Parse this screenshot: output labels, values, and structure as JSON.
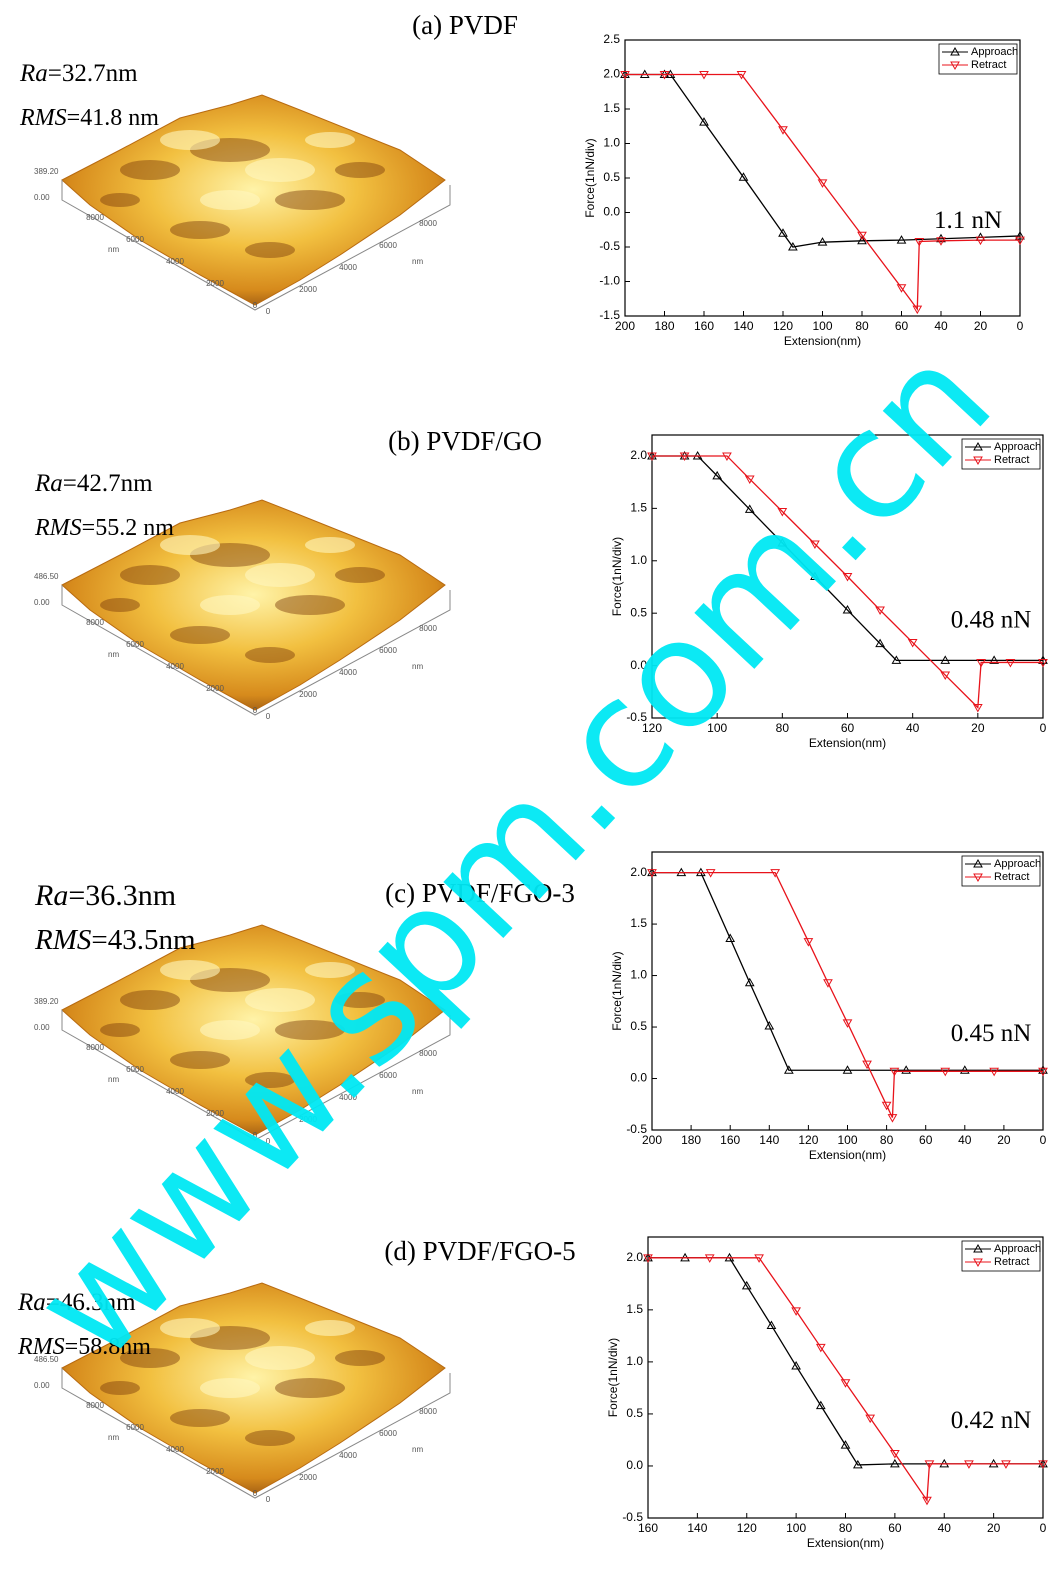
{
  "watermark": "www.spm.com.cn",
  "panels": [
    {
      "title": "(a) PVDF",
      "ra_symbol": "Ra",
      "ra_text": "=32.7nm",
      "rms_symbol": "RMS",
      "rms_text": "=41.8 nm",
      "afm": {
        "z_labels": [
          "389.20",
          "0.00"
        ],
        "left_ticks": [
          "8000",
          "6000",
          "4000",
          "2000",
          "0"
        ],
        "right_ticks": [
          "0",
          "2000",
          "4000",
          "6000",
          "8000"
        ],
        "unit": "nm"
      }
    },
    {
      "title": "(b) PVDF/GO",
      "ra_symbol": "Ra",
      "ra_text": "=42.7nm",
      "rms_symbol": "RMS",
      "rms_text": "=55.2 nm",
      "afm": {
        "z_labels": [
          "486.50",
          "0.00"
        ],
        "left_ticks": [
          "8000",
          "6000",
          "4000",
          "2000",
          "0"
        ],
        "right_ticks": [
          "0",
          "2000",
          "4000",
          "6000",
          "8000"
        ],
        "unit": "nm"
      }
    },
    {
      "title": "(c) PVDF/FGO-3",
      "ra_symbol": "Ra",
      "ra_text": "=36.3nm",
      "rms_symbol": "RMS",
      "rms_text": "=43.5nm",
      "afm": {
        "z_labels": [
          "389.20",
          "0.00"
        ],
        "left_ticks": [
          "8000",
          "6000",
          "4000",
          "2000",
          "0"
        ],
        "right_ticks": [
          "0",
          "2000",
          "4000",
          "6000",
          "8000"
        ],
        "unit": "nm"
      }
    },
    {
      "title": "(d) PVDF/FGO-5",
      "ra_symbol": "Ra",
      "ra_text": "=46.3nm",
      "rms_symbol": "RMS",
      "rms_text": "=58.8nm",
      "afm": {
        "z_labels": [
          "486.50",
          "0.00"
        ],
        "left_ticks": [
          "8000",
          "6000",
          "4000",
          "2000",
          "0"
        ],
        "right_ticks": [
          "0",
          "2000",
          "4000",
          "6000",
          "8000"
        ],
        "unit": "nm"
      }
    }
  ],
  "chart_data": [
    {
      "type": "line",
      "x_label": "Extension(nm)",
      "y_label": "Force(1nN/div)",
      "xlim": [
        200,
        0
      ],
      "ylim": [
        -1.5,
        2.5
      ],
      "xticks": [
        200,
        180,
        160,
        140,
        120,
        100,
        80,
        60,
        40,
        20,
        0
      ],
      "yticks": [
        {
          "value": -1.5,
          "label": "-1.5"
        },
        {
          "value": -1.0,
          "label": "-1.0"
        },
        {
          "value": -0.5,
          "label": "-0.5"
        },
        {
          "value": 0,
          "label": "0.0"
        },
        {
          "value": 0.5,
          "label": "0.5"
        },
        {
          "value": 1.0,
          "label": "1.0"
        },
        {
          "value": 1.5,
          "label": "1.5"
        },
        {
          "value": 2.0,
          "label": "2.0"
        },
        {
          "value": 2.5,
          "label": "2.5"
        }
      ],
      "annotation": "1.1 nN",
      "series": [
        {
          "name": "Approach",
          "color": "#000000",
          "marker": "up",
          "x": [
            200,
            190,
            180,
            177,
            160,
            140,
            120,
            115,
            100,
            80,
            60,
            40,
            20,
            0
          ],
          "values": [
            2.0,
            2.0,
            2.0,
            2.0,
            1.31,
            0.51,
            -0.3,
            -0.5,
            -0.43,
            -0.41,
            -0.4,
            -0.38,
            -0.36,
            -0.34
          ]
        },
        {
          "name": "Retract",
          "color": "#e8131b",
          "marker": "down",
          "x": [
            200,
            180,
            160,
            141,
            120,
            100,
            80,
            60,
            52,
            51,
            40,
            20,
            0
          ],
          "values": [
            2.0,
            2.0,
            2.0,
            2.0,
            1.2,
            0.43,
            -0.33,
            -1.09,
            -1.4,
            -0.42,
            -0.41,
            -0.4,
            -0.4
          ]
        }
      ]
    },
    {
      "type": "line",
      "x_label": "Extension(nm)",
      "y_label": "Force(1nN/div)",
      "xlim": [
        120,
        0
      ],
      "ylim": [
        -0.5,
        2.2
      ],
      "xticks": [
        120,
        100,
        80,
        60,
        40,
        20,
        0
      ],
      "yticks": [
        {
          "value": -0.5,
          "label": "-0.5"
        },
        {
          "value": 0,
          "label": "0.0"
        },
        {
          "value": 0.5,
          "label": "0.5"
        },
        {
          "value": 1.0,
          "label": "1.0"
        },
        {
          "value": 1.5,
          "label": "1.5"
        },
        {
          "value": 2.0,
          "label": "2.0"
        }
      ],
      "annotation": "0.48 nN",
      "series": [
        {
          "name": "Approach",
          "color": "#000000",
          "marker": "up",
          "x": [
            120,
            110,
            106,
            100,
            90,
            80,
            70,
            60,
            50,
            45,
            30,
            15,
            0
          ],
          "values": [
            2.0,
            2.0,
            2.0,
            1.81,
            1.49,
            1.17,
            0.85,
            0.53,
            0.21,
            0.05,
            0.05,
            0.05,
            0.05
          ]
        },
        {
          "name": "Retract",
          "color": "#e8131b",
          "marker": "down",
          "x": [
            120,
            110,
            97,
            90,
            80,
            70,
            60,
            50,
            40,
            30,
            20,
            19,
            10,
            0
          ],
          "values": [
            2.0,
            2.0,
            2.0,
            1.78,
            1.47,
            1.16,
            0.85,
            0.53,
            0.22,
            -0.09,
            -0.4,
            0.03,
            0.03,
            0.03
          ]
        }
      ]
    },
    {
      "type": "line",
      "x_label": "Extension(nm)",
      "y_label": "Force(1nN/div)",
      "xlim": [
        200,
        0
      ],
      "ylim": [
        -0.5,
        2.2
      ],
      "xticks": [
        200,
        180,
        160,
        140,
        120,
        100,
        80,
        60,
        40,
        20,
        0
      ],
      "yticks": [
        {
          "value": -0.5,
          "label": "-0.5"
        },
        {
          "value": 0,
          "label": "0.0"
        },
        {
          "value": 0.5,
          "label": "0.5"
        },
        {
          "value": 1.0,
          "label": "1.0"
        },
        {
          "value": 1.5,
          "label": "1.5"
        },
        {
          "value": 2.0,
          "label": "2.0"
        }
      ],
      "annotation": "0.45 nN",
      "series": [
        {
          "name": "Approach",
          "color": "#000000",
          "marker": "up",
          "x": [
            200,
            185,
            175,
            160,
            150,
            140,
            130,
            100,
            70,
            40,
            0
          ],
          "values": [
            2.0,
            2.0,
            2.0,
            1.36,
            0.93,
            0.51,
            0.08,
            0.08,
            0.08,
            0.08,
            0.08
          ]
        },
        {
          "name": "Retract",
          "color": "#e8131b",
          "marker": "down",
          "x": [
            200,
            170,
            137,
            120,
            110,
            100,
            90,
            80,
            77,
            76,
            50,
            25,
            0
          ],
          "values": [
            2.0,
            2.0,
            2.0,
            1.33,
            0.93,
            0.54,
            0.14,
            -0.26,
            -0.38,
            0.07,
            0.07,
            0.07,
            0.07
          ]
        }
      ]
    },
    {
      "type": "line",
      "x_label": "Extension(nm)",
      "y_label": "Force(1nN/div)",
      "xlim": [
        160,
        0
      ],
      "ylim": [
        -0.5,
        2.2
      ],
      "xticks": [
        160,
        140,
        120,
        100,
        80,
        60,
        40,
        20,
        0
      ],
      "yticks": [
        {
          "value": -0.5,
          "label": "-0.5"
        },
        {
          "value": 0,
          "label": "0.0"
        },
        {
          "value": 0.5,
          "label": "0.5"
        },
        {
          "value": 1.0,
          "label": "1.0"
        },
        {
          "value": 1.5,
          "label": "1.5"
        },
        {
          "value": 2.0,
          "label": "2.0"
        }
      ],
      "annotation": "0.42 nN",
      "series": [
        {
          "name": "Approach",
          "color": "#000000",
          "marker": "up",
          "x": [
            160,
            145,
            127,
            120,
            110,
            100,
            90,
            80,
            75,
            60,
            40,
            20,
            0
          ],
          "values": [
            2.0,
            2.0,
            2.0,
            1.73,
            1.35,
            0.96,
            0.58,
            0.2,
            0.01,
            0.02,
            0.02,
            0.02,
            0.02
          ]
        },
        {
          "name": "Retract",
          "color": "#e8131b",
          "marker": "down",
          "x": [
            160,
            135,
            115,
            100,
            90,
            80,
            70,
            60,
            47,
            46,
            30,
            15,
            0
          ],
          "values": [
            2.0,
            2.0,
            2.0,
            1.49,
            1.14,
            0.8,
            0.46,
            0.12,
            -0.33,
            0.02,
            0.02,
            0.02,
            0.02
          ]
        }
      ]
    }
  ]
}
